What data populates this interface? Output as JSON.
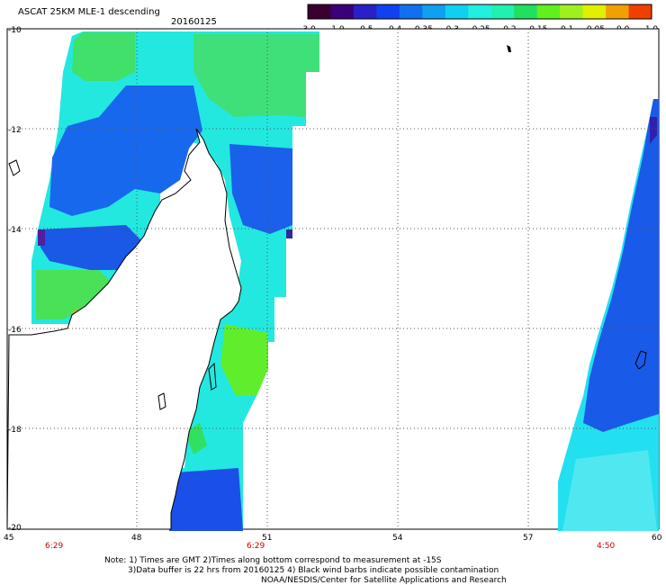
{
  "header": {
    "title": "ASCAT 25KM MLE-1 descending",
    "date": "20160125"
  },
  "colorbar": {
    "colors": [
      "#3a0030",
      "#3b0078",
      "#2a20c8",
      "#1040f0",
      "#1070f0",
      "#10a0f0",
      "#10d0f0",
      "#20f0e0",
      "#20f0b0",
      "#20e060",
      "#60f020",
      "#a0f020",
      "#e0f000",
      "#f0a000",
      "#f04000"
    ],
    "tick_labels": [
      "-3.0",
      "-1.0",
      "-0.5",
      "-0.4",
      "-0.35",
      "-0.3",
      "-0.25",
      "-0.2",
      "-0.15",
      "-0.1",
      "-0.05",
      "0.0",
      "1.0"
    ]
  },
  "axes": {
    "lat_labels": [
      "-10",
      "-12",
      "-14",
      "-16",
      "-18",
      "-20"
    ],
    "lon_labels": [
      "45",
      "48",
      "51",
      "54",
      "57",
      "60"
    ]
  },
  "times": [
    "6:29",
    "6:29",
    "4:50"
  ],
  "notes": [
    "Note: 1) Times are GMT 2)Times along bottom correspond to measurement at -15S",
    "3)Data buffer is 22 hrs from 20160125 4) Black wind barbs indicate possible contamination",
    "NOAA/NESDIS/Center for Satellite Applications and Research"
  ]
}
